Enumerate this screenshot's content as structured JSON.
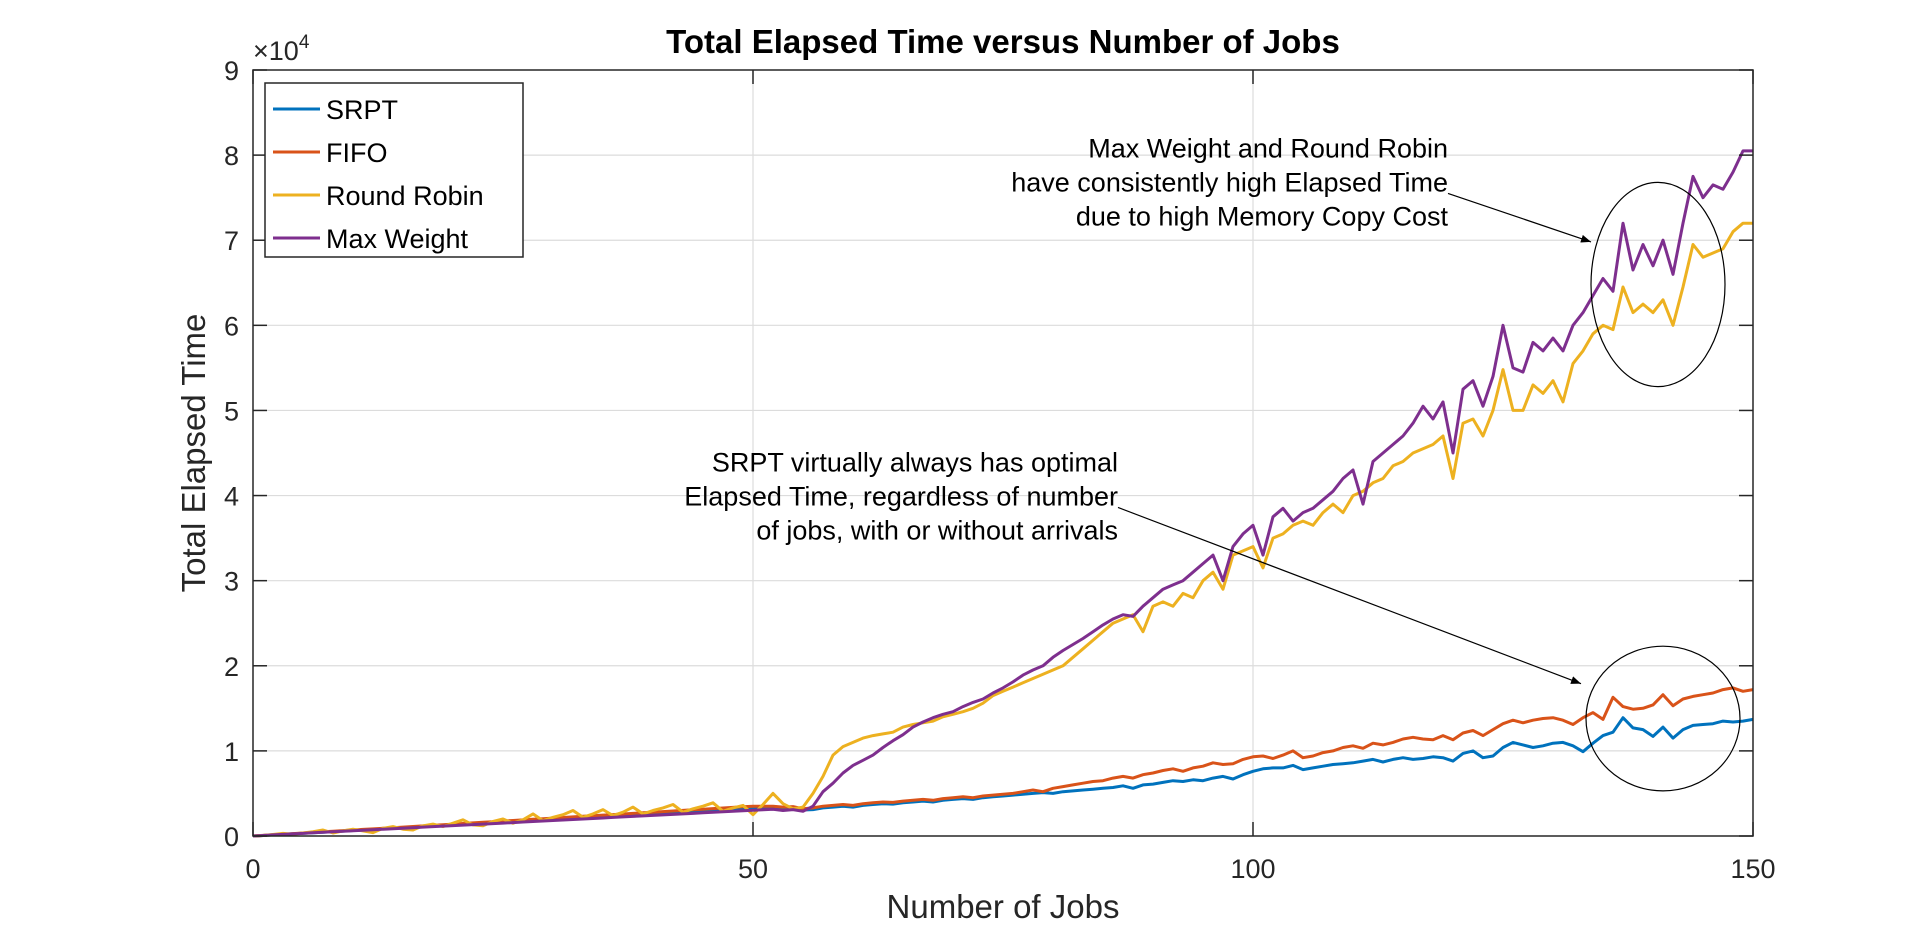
{
  "chart_data": {
    "type": "line",
    "title": "Total Elapsed Time versus Number of Jobs",
    "xlabel": "Number of Jobs",
    "ylabel": "Total Elapsed Time",
    "xlim": [
      0,
      150
    ],
    "ylim": [
      0,
      90000
    ],
    "y_exponent_label": "×10",
    "y_exponent_power": "4",
    "x_ticks": [
      0,
      50,
      100,
      150
    ],
    "x_tick_labels": [
      "0",
      "50",
      "100",
      "150"
    ],
    "y_ticks": [
      0,
      10000,
      20000,
      30000,
      40000,
      50000,
      60000,
      70000,
      80000,
      90000
    ],
    "y_tick_labels": [
      "0",
      "1",
      "2",
      "3",
      "4",
      "5",
      "6",
      "7",
      "8",
      "9"
    ],
    "grid": true,
    "legend_position": "top-left",
    "x": [
      0,
      1,
      2,
      3,
      4,
      5,
      6,
      7,
      8,
      9,
      10,
      11,
      12,
      13,
      14,
      15,
      16,
      17,
      18,
      19,
      20,
      21,
      22,
      23,
      24,
      25,
      26,
      27,
      28,
      29,
      30,
      31,
      32,
      33,
      34,
      35,
      36,
      37,
      38,
      39,
      40,
      41,
      42,
      43,
      44,
      45,
      46,
      47,
      48,
      49,
      50,
      51,
      52,
      53,
      54,
      55,
      56,
      57,
      58,
      59,
      60,
      61,
      62,
      63,
      64,
      65,
      66,
      67,
      68,
      69,
      70,
      71,
      72,
      73,
      74,
      75,
      76,
      77,
      78,
      79,
      80,
      81,
      82,
      83,
      84,
      85,
      86,
      87,
      88,
      89,
      90,
      91,
      92,
      93,
      94,
      95,
      96,
      97,
      98,
      99,
      100,
      101,
      102,
      103,
      104,
      105,
      106,
      107,
      108,
      109,
      110,
      111,
      112,
      113,
      114,
      115,
      116,
      117,
      118,
      119,
      120,
      121,
      122,
      123,
      124,
      125,
      126,
      127,
      128,
      129,
      130,
      131,
      132,
      133,
      134,
      135,
      136,
      137,
      138,
      139,
      140,
      141,
      142,
      143,
      144,
      145,
      146,
      147,
      148,
      149,
      150
    ],
    "series": [
      {
        "name": "SRPT",
        "color": "#0072BD",
        "values": [
          0,
          60,
          130,
          190,
          260,
          320,
          390,
          450,
          520,
          580,
          650,
          710,
          780,
          840,
          910,
          970,
          1040,
          1100,
          1170,
          1230,
          1300,
          1360,
          1430,
          1490,
          1560,
          1620,
          1690,
          1750,
          1820,
          1880,
          1950,
          2010,
          2080,
          2140,
          2210,
          2270,
          2340,
          2400,
          2470,
          2530,
          2600,
          2660,
          2730,
          2790,
          2860,
          2920,
          2990,
          3050,
          3120,
          3180,
          3250,
          3250,
          3250,
          3200,
          3250,
          3050,
          3100,
          3300,
          3400,
          3500,
          3400,
          3600,
          3700,
          3800,
          3750,
          3900,
          4000,
          4100,
          4000,
          4200,
          4300,
          4400,
          4300,
          4500,
          4600,
          4700,
          4800,
          4900,
          5000,
          5100,
          5000,
          5200,
          5300,
          5400,
          5500,
          5600,
          5700,
          5900,
          5600,
          6000,
          6100,
          6300,
          6500,
          6400,
          6600,
          6500,
          6800,
          7000,
          6700,
          7200,
          7600,
          7900,
          8000,
          8000,
          8300,
          7800,
          8000,
          8200,
          8400,
          8500,
          8600,
          8800,
          9000,
          8700,
          9000,
          9200,
          9000,
          9100,
          9300,
          9200,
          8800,
          9700,
          10000,
          9200,
          9400,
          10400,
          11000,
          10700,
          10400,
          10600,
          10900,
          11000,
          10600,
          9900,
          10900,
          11800,
          12200,
          13900,
          12700,
          12500,
          11700,
          12800,
          11500,
          12500,
          13000,
          13100,
          13200,
          13500,
          13400,
          13500,
          13700
        ]
      },
      {
        "name": "FIFO",
        "color": "#D95319",
        "values": [
          0,
          70,
          140,
          210,
          280,
          350,
          420,
          490,
          560,
          630,
          700,
          770,
          840,
          910,
          980,
          1050,
          1120,
          1190,
          1260,
          1330,
          1400,
          1470,
          1540,
          1610,
          1680,
          1750,
          1820,
          1890,
          1960,
          2030,
          2100,
          2170,
          2240,
          2310,
          2380,
          2450,
          2520,
          2590,
          2660,
          2730,
          2800,
          2870,
          2940,
          3010,
          3080,
          3150,
          3220,
          3290,
          3360,
          3430,
          3500,
          3500,
          3500,
          3400,
          3450,
          3200,
          3300,
          3500,
          3600,
          3700,
          3600,
          3800,
          3900,
          4000,
          3950,
          4100,
          4200,
          4300,
          4200,
          4400,
          4500,
          4600,
          4500,
          4700,
          4800,
          4900,
          5000,
          5200,
          5400,
          5200,
          5600,
          5800,
          6000,
          6200,
          6400,
          6500,
          6800,
          7000,
          6800,
          7200,
          7400,
          7700,
          7900,
          7600,
          8000,
          8200,
          8600,
          8400,
          8500,
          9000,
          9300,
          9400,
          9100,
          9500,
          10000,
          9200,
          9400,
          9800,
          10000,
          10400,
          10600,
          10300,
          10900,
          10700,
          11000,
          11400,
          11600,
          11400,
          11300,
          11800,
          11300,
          12100,
          12400,
          11800,
          12500,
          13200,
          13600,
          13300,
          13600,
          13800,
          13900,
          13600,
          13100,
          13900,
          14500,
          13700,
          16300,
          15200,
          14900,
          15000,
          15400,
          16600,
          15300,
          16100,
          16400,
          16600,
          16800,
          17200,
          17400,
          17000,
          17200
        ]
      },
      {
        "name": "Round Robin",
        "color": "#EDB120",
        "values": [
          0,
          60,
          180,
          300,
          200,
          350,
          500,
          700,
          350,
          600,
          800,
          600,
          400,
          900,
          1100,
          800,
          700,
          1200,
          1400,
          1100,
          1500,
          1900,
          1300,
          1200,
          1700,
          2000,
          1500,
          1900,
          2600,
          1800,
          2200,
          2500,
          3000,
          2200,
          2600,
          3100,
          2400,
          2800,
          3400,
          2600,
          3000,
          3300,
          3700,
          2800,
          3200,
          3500,
          3900,
          2900,
          3300,
          3600,
          2500,
          3700,
          5000,
          3800,
          3200,
          3400,
          5000,
          7000,
          9500,
          10500,
          11000,
          11500,
          11800,
          12000,
          12200,
          12800,
          13100,
          13300,
          13500,
          14000,
          14300,
          14600,
          15000,
          15600,
          16500,
          17000,
          17500,
          18000,
          18500,
          19000,
          19500,
          20000,
          21000,
          22000,
          23000,
          24000,
          25000,
          25500,
          26000,
          24000,
          27000,
          27500,
          27000,
          28500,
          28000,
          30000,
          31000,
          29000,
          33000,
          33500,
          34000,
          31500,
          35000,
          35500,
          36500,
          37000,
          36500,
          38000,
          39000,
          38000,
          40000,
          40500,
          41500,
          42000,
          43500,
          44000,
          45000,
          45500,
          46000,
          47000,
          42000,
          48500,
          49000,
          47000,
          50000,
          54800,
          50000,
          50000,
          53000,
          52000,
          53500,
          51000,
          55500,
          57000,
          59000,
          60000,
          59500,
          64500,
          61500,
          62500,
          61500,
          63000,
          60000,
          64500,
          69500,
          68000,
          68500,
          69000,
          71000,
          72000,
          72000
        ]
      },
      {
        "name": "Max Weight",
        "color": "#7E2F8E",
        "values": [
          0,
          60,
          130,
          190,
          250,
          310,
          380,
          440,
          500,
          560,
          620,
          680,
          740,
          800,
          860,
          920,
          980,
          1040,
          1100,
          1160,
          1220,
          1280,
          1340,
          1400,
          1460,
          1520,
          1580,
          1640,
          1700,
          1760,
          1820,
          1880,
          1940,
          2000,
          2060,
          2120,
          2180,
          2240,
          2300,
          2360,
          2420,
          2480,
          2540,
          2600,
          2660,
          2720,
          2780,
          2840,
          2900,
          2960,
          3020,
          3080,
          3140,
          3000,
          3100,
          2900,
          3500,
          5200,
          6200,
          7400,
          8300,
          8900,
          9500,
          10400,
          11200,
          11900,
          12800,
          13400,
          13900,
          14300,
          14600,
          15200,
          15700,
          16100,
          16800,
          17400,
          18100,
          18900,
          19500,
          20000,
          21000,
          21800,
          22500,
          23200,
          24000,
          24800,
          25500,
          26000,
          25800,
          27000,
          28000,
          29000,
          29500,
          30000,
          31000,
          32000,
          33000,
          30000,
          34000,
          35500,
          36500,
          33000,
          37500,
          38500,
          37000,
          38000,
          38500,
          39500,
          40500,
          42000,
          43000,
          39000,
          44000,
          45000,
          46000,
          47000,
          48500,
          50500,
          49000,
          51000,
          45000,
          52500,
          53500,
          50500,
          54000,
          60000,
          55000,
          54500,
          58000,
          57000,
          58500,
          57000,
          60000,
          61500,
          63500,
          65500,
          64000,
          72000,
          66500,
          69500,
          67000,
          70000,
          66000,
          72000,
          77500,
          75000,
          76500,
          76000,
          78000,
          80500,
          80500
        ]
      }
    ],
    "annotations": [
      {
        "lines": [
          "Max Weight and Round Robin",
          "have consistently high Elapsed Time",
          "due to high Memory Copy Cost"
        ],
        "ellipse_center": [
          140.5,
          64800
        ],
        "ellipse_radius": [
          6.7,
          12000
        ],
        "arrow_from": [
          119.5,
          75500
        ],
        "arrow_to": [
          133.8,
          69800
        ]
      },
      {
        "lines": [
          "SRPT virtually always has optimal",
          "Elapsed Time, regardless of number",
          "of jobs, with or without arrivals"
        ],
        "ellipse_center": [
          141,
          13800
        ],
        "ellipse_radius": [
          7.7,
          8500
        ],
        "arrow_from": [
          86.5,
          38600
        ],
        "arrow_to": [
          132.8,
          17900
        ]
      }
    ]
  }
}
